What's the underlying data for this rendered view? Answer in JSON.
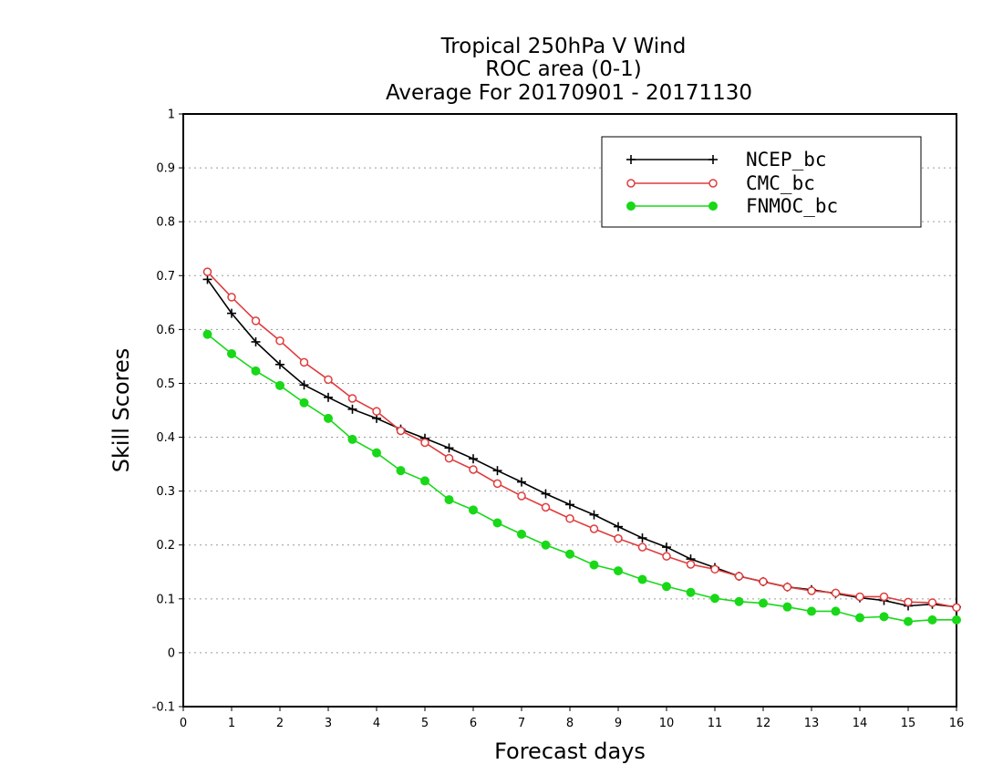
{
  "chart_data": {
    "type": "line",
    "title_lines": [
      "Tropical 250hPa V Wind",
      "ROC area (0-1)",
      "Average For 20170901 - 20171130"
    ],
    "xlabel": "Forecast days",
    "ylabel": "Skill Scores",
    "xlim": [
      0,
      16
    ],
    "ylim": [
      -0.1,
      1
    ],
    "x_ticks": [
      0,
      1,
      2,
      3,
      4,
      5,
      6,
      7,
      8,
      9,
      10,
      11,
      12,
      13,
      14,
      15,
      16
    ],
    "x_tick_labels": [
      "0",
      "1",
      "2",
      "3",
      "4",
      "5",
      "6",
      "7",
      "8",
      "9",
      "10",
      "11",
      "12",
      "13",
      "14",
      "15",
      "16"
    ],
    "y_ticks": [
      -0.1,
      0,
      0.1,
      0.2,
      0.3,
      0.4,
      0.5,
      0.6,
      0.7,
      0.8,
      0.9,
      1
    ],
    "y_tick_labels": [
      "-0.1",
      "0",
      "0.1",
      "0.2",
      "0.3",
      "0.4",
      "0.5",
      "0.6",
      "0.7",
      "0.8",
      "0.9",
      "1"
    ],
    "grid": "horizontal-dotted",
    "legend_position": "top-right",
    "x": [
      0.5,
      1,
      1.5,
      2,
      2.5,
      3,
      3.5,
      4,
      4.5,
      5,
      5.5,
      6,
      6.5,
      7,
      7.5,
      8,
      8.5,
      9,
      9.5,
      10,
      10.5,
      11,
      11.5,
      12,
      12.5,
      13,
      13.5,
      14,
      14.5,
      15,
      15.5,
      16
    ],
    "series": [
      {
        "name": "NCEP_bc",
        "color": "#000000",
        "marker": "plus",
        "values": [
          0.693,
          0.63,
          0.577,
          0.535,
          0.497,
          0.474,
          0.452,
          0.435,
          0.415,
          0.398,
          0.38,
          0.36,
          0.338,
          0.317,
          0.295,
          0.275,
          0.256,
          0.234,
          0.213,
          0.196,
          0.174,
          0.158,
          0.142,
          0.132,
          0.122,
          0.117,
          0.11,
          0.102,
          0.097,
          0.087,
          0.09,
          0.085
        ]
      },
      {
        "name": "CMC_bc",
        "color": "#e03c3c",
        "marker": "open-circle",
        "values": [
          0.707,
          0.66,
          0.616,
          0.579,
          0.539,
          0.507,
          0.472,
          0.448,
          0.412,
          0.39,
          0.361,
          0.34,
          0.314,
          0.291,
          0.27,
          0.249,
          0.23,
          0.212,
          0.196,
          0.179,
          0.164,
          0.155,
          0.142,
          0.132,
          0.122,
          0.115,
          0.111,
          0.104,
          0.104,
          0.094,
          0.093,
          0.084
        ]
      },
      {
        "name": "FNMOC_bc",
        "color": "#18d818",
        "marker": "filled-circle",
        "values": [
          0.591,
          0.555,
          0.523,
          0.496,
          0.464,
          0.435,
          0.396,
          0.371,
          0.338,
          0.319,
          0.284,
          0.265,
          0.241,
          0.22,
          0.2,
          0.183,
          0.163,
          0.152,
          0.136,
          0.123,
          0.112,
          0.101,
          0.095,
          0.092,
          0.085,
          0.077,
          0.077,
          0.065,
          0.067,
          0.058,
          0.061,
          0.061
        ]
      }
    ]
  }
}
